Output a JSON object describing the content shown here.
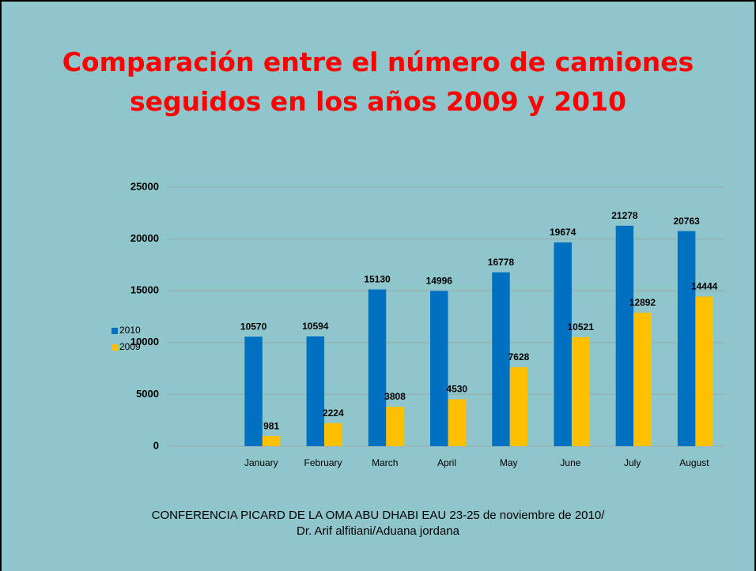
{
  "chart_data": {
    "type": "bar",
    "title": "Comparación entre el número de camiones seguidos en los años 2009 y 2010",
    "categories": [
      null,
      "January",
      "February",
      "March",
      "April",
      "May",
      "June",
      "July",
      "August"
    ],
    "series": [
      {
        "name": "2010",
        "color": "#0070c0",
        "values": [
          null,
          10570,
          10594,
          15130,
          14996,
          16778,
          19674,
          21278,
          20763
        ]
      },
      {
        "name": "2009",
        "color": "#ffc000",
        "values": [
          null,
          981,
          2224,
          3808,
          4530,
          7628,
          10521,
          12892,
          14444
        ]
      }
    ],
    "ylim": [
      0,
      25000
    ],
    "yticks": [
      0,
      5000,
      10000,
      15000,
      20000,
      25000
    ],
    "grid": true,
    "legend": "left"
  },
  "footer": [
    "CONFERENCIA PICARD DE LA OMA  ABU DHABI EAU 23-25 de noviembre de 2010/",
    "Dr. Arif alfitiani/Aduana jordana"
  ]
}
